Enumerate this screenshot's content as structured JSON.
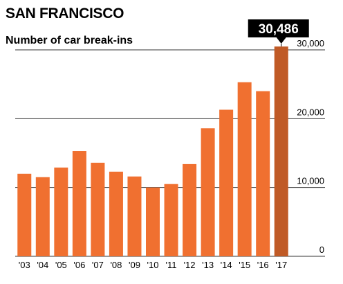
{
  "chart_data": {
    "type": "bar",
    "title": "SAN FRANCISCO",
    "subtitle": "Number of car break-ins",
    "categories": [
      "'03",
      "'04",
      "'05",
      "'06",
      "'07",
      "'08",
      "'09",
      "'10",
      "'11",
      "'12",
      "'13",
      "'14",
      "'15",
      "'16",
      "'17"
    ],
    "values": [
      12000,
      11500,
      12900,
      15300,
      13600,
      12300,
      11600,
      10000,
      10500,
      13400,
      18600,
      21300,
      25300,
      24000,
      30486
    ],
    "highlight": {
      "index": 14,
      "label": "30,486"
    },
    "yticks": [
      0,
      10000,
      20000,
      30000
    ],
    "ytick_labels": [
      "0",
      "10,000",
      "20,000",
      "30,000"
    ],
    "ylim": [
      0,
      30000
    ],
    "xlabel": "",
    "ylabel": "",
    "grid": true,
    "colors": {
      "bar": "#f07030",
      "highlight": "#c05a26",
      "grid": "#333333",
      "label_bg": "#000000",
      "label_text": "#ffffff"
    }
  }
}
